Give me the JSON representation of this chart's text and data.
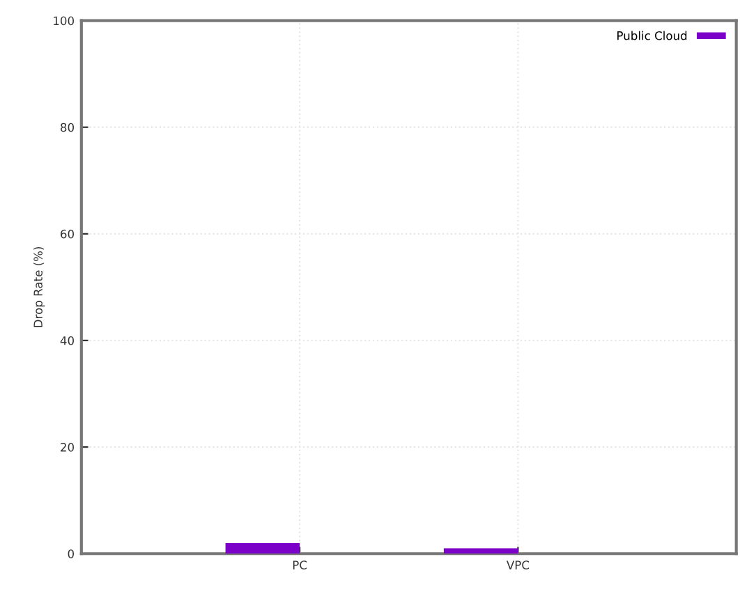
{
  "chart_data": {
    "type": "bar",
    "ylabel": "Drop Rate (%)",
    "categories": [
      "PC",
      "VPC"
    ],
    "series": [
      {
        "name": "Public Cloud",
        "color": "#7b00c8",
        "values": [
          2,
          1
        ]
      }
    ],
    "ylim": [
      0,
      100
    ],
    "yticks": [
      0,
      20,
      40,
      60,
      80,
      100
    ],
    "grid": true,
    "legend": "top right"
  }
}
